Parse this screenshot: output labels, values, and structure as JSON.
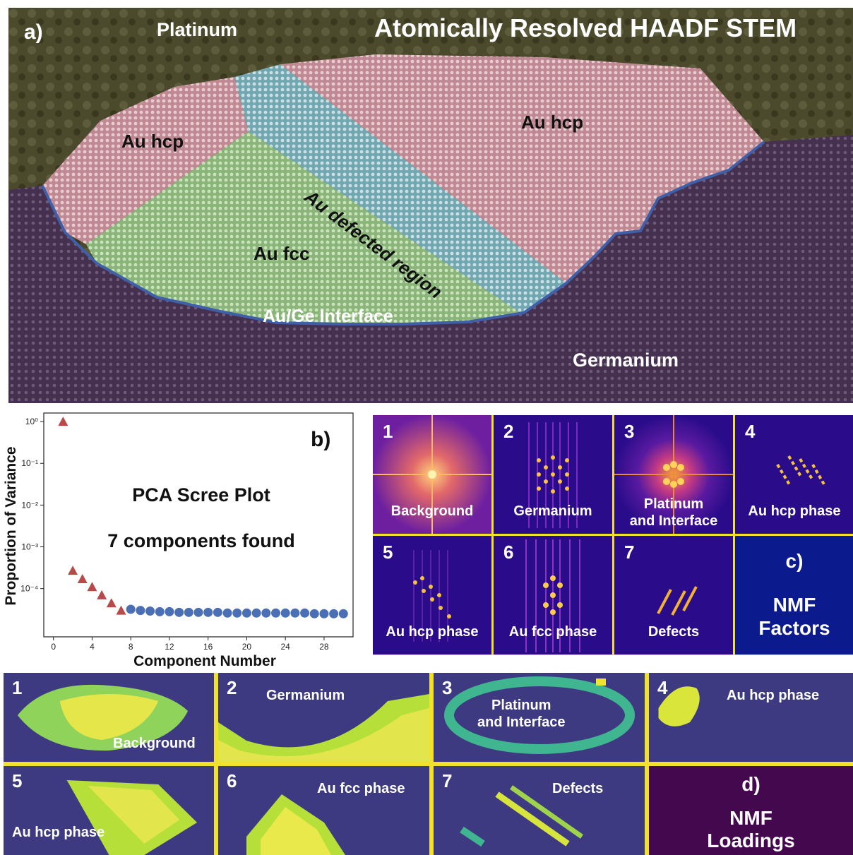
{
  "panel_a": {
    "tag": "a)",
    "title": "Atomically Resolved HAADF STEM",
    "labels": {
      "platinum": "Platinum",
      "au_hcp_left": "Au hcp",
      "au_hcp_right": "Au hcp",
      "au_defected": "Au defected region",
      "au_fcc": "Au fcc",
      "interface": "Au/Ge Interface",
      "germanium": "Germanium"
    }
  },
  "panel_b": {
    "tag": "b)",
    "plot_title": "PCA Scree Plot",
    "plot_subtitle": "7 components found",
    "xlabel": "Component Number",
    "ylabel": "Proportion of Variance",
    "x_ticks": [
      "0",
      "4",
      "8",
      "12",
      "16",
      "20",
      "24",
      "28"
    ],
    "y_ticks": [
      "10⁰",
      "10⁻¹",
      "10⁻²",
      "10⁻³",
      "10⁻⁴"
    ]
  },
  "chart_data": {
    "type": "scatter",
    "title": "PCA Scree Plot",
    "subtitle": "7 components found",
    "xlabel": "Component Number",
    "ylabel": "Proportion of Variance",
    "yscale": "log",
    "xlim": [
      -1,
      31
    ],
    "ylim": [
      7e-06,
      1.6
    ],
    "series": [
      {
        "name": "",
        "marker": "triangle",
        "color": "#b84a4a",
        "x": [
          1,
          2,
          3,
          4,
          5,
          6,
          7
        ],
        "y": [
          1.0,
          0.00027,
          0.00017,
          0.00011,
          7e-05,
          4.5e-05,
          3e-05
        ]
      },
      {
        "name": "",
        "marker": "circle",
        "color": "#4a6fb5",
        "x": [
          8,
          9,
          10,
          11,
          12,
          13,
          14,
          15,
          16,
          17,
          18,
          19,
          20,
          21,
          22,
          23,
          24,
          25,
          26,
          27,
          28,
          29,
          30
        ],
        "y": [
          3.2e-05,
          3e-05,
          2.9e-05,
          2.8e-05,
          2.8e-05,
          2.7e-05,
          2.7e-05,
          2.7e-05,
          2.7e-05,
          2.7e-05,
          2.6e-05,
          2.6e-05,
          2.6e-05,
          2.6e-05,
          2.6e-05,
          2.6e-05,
          2.6e-05,
          2.6e-05,
          2.6e-05,
          2.5e-05,
          2.5e-05,
          2.5e-05,
          2.5e-05
        ]
      }
    ]
  },
  "panel_c": {
    "tag": "c)",
    "legend": [
      "NMF",
      "Factors"
    ],
    "tiles": [
      {
        "num": "1",
        "label": [
          "Background"
        ]
      },
      {
        "num": "2",
        "label": [
          "Germanium"
        ]
      },
      {
        "num": "3",
        "label": [
          "Platinum",
          "and Interface"
        ]
      },
      {
        "num": "4",
        "label": [
          "Au hcp phase"
        ]
      },
      {
        "num": "5",
        "label": [
          "Au hcp phase"
        ]
      },
      {
        "num": "6",
        "label": [
          "Au fcc phase"
        ]
      },
      {
        "num": "7",
        "label": [
          "Defects"
        ]
      }
    ]
  },
  "panel_d": {
    "tag": "d)",
    "legend": [
      "NMF",
      "Loadings"
    ],
    "tiles": [
      {
        "num": "1",
        "label": [
          "Background"
        ]
      },
      {
        "num": "2",
        "label": [
          "Germanium"
        ]
      },
      {
        "num": "3",
        "label": [
          "Platinum",
          "and Interface"
        ]
      },
      {
        "num": "4",
        "label": [
          "Au hcp phase"
        ]
      },
      {
        "num": "5",
        "label": [
          "Au hcp phase"
        ]
      },
      {
        "num": "6",
        "label": [
          "Au fcc phase"
        ]
      },
      {
        "num": "7",
        "label": [
          "Defects"
        ]
      }
    ]
  },
  "colors": {
    "platinum": "#4c4a2c",
    "germanium": "#4a3456",
    "au_hcp": "#d99aa5",
    "au_fcc": "#9fc88f",
    "au_defected": "#86bcc6",
    "separator": "#f2e12a",
    "fft_bg": "#2b0d8f",
    "loading_bg": "#3e3a82"
  }
}
